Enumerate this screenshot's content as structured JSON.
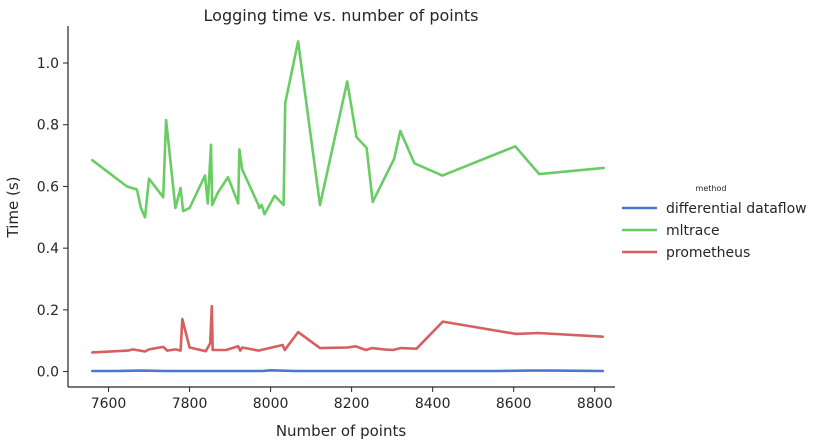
{
  "chart_data": {
    "type": "line",
    "title": "Logging time vs. number of points",
    "xlabel": "Number of points",
    "ylabel": "Time (s)",
    "xlim": [
      7500,
      8850
    ],
    "ylim": [
      -0.05,
      1.12
    ],
    "xticks": [
      7600,
      7800,
      8000,
      8200,
      8400,
      8600,
      8800
    ],
    "yticks": [
      0.0,
      0.2,
      0.4,
      0.6,
      0.8,
      1.0
    ],
    "xtick_labels": [
      "7600",
      "7800",
      "8000",
      "8200",
      "8400",
      "8600",
      "8800"
    ],
    "ytick_labels": [
      "0.0",
      "0.2",
      "0.4",
      "0.6",
      "0.8",
      "1.0"
    ],
    "grid": false,
    "legend": {
      "title": "method",
      "placement": "right"
    },
    "series": [
      {
        "name": "differential dataflow",
        "color": "#4878d0",
        "x": [
          7560,
          7620,
          7680,
          7740,
          7800,
          7860,
          7920,
          7980,
          8000,
          8060,
          8120,
          8200,
          8260,
          8320,
          8400,
          8480,
          8560,
          8640,
          8700,
          8820
        ],
        "y": [
          0.002,
          0.002,
          0.003,
          0.002,
          0.002,
          0.002,
          0.002,
          0.002,
          0.004,
          0.002,
          0.002,
          0.002,
          0.002,
          0.002,
          0.002,
          0.002,
          0.002,
          0.003,
          0.003,
          0.002
        ]
      },
      {
        "name": "mltrace",
        "color": "#6acc64",
        "x": [
          7560,
          7645,
          7670,
          7680,
          7690,
          7700,
          7735,
          7742,
          7765,
          7778,
          7784,
          7800,
          7838,
          7845,
          7853,
          7856,
          7870,
          7895,
          7920,
          7923,
          7930,
          7970,
          7972,
          7978,
          7985,
          8010,
          8032,
          8036,
          8068,
          8122,
          8189,
          8212,
          8237,
          8252,
          8305,
          8320,
          8355,
          8424,
          8604,
          8663,
          8822
        ],
        "y": [
          0.685,
          0.6,
          0.59,
          0.53,
          0.5,
          0.625,
          0.565,
          0.815,
          0.53,
          0.595,
          0.52,
          0.53,
          0.635,
          0.545,
          0.735,
          0.54,
          0.58,
          0.63,
          0.545,
          0.72,
          0.655,
          0.54,
          0.53,
          0.54,
          0.51,
          0.57,
          0.54,
          0.87,
          1.07,
          0.54,
          0.94,
          0.76,
          0.725,
          0.55,
          0.69,
          0.78,
          0.675,
          0.635,
          0.73,
          0.64,
          0.66
        ]
      },
      {
        "name": "prometheus",
        "color": "#d65f5f",
        "x": [
          7560,
          7648,
          7660,
          7690,
          7700,
          7735,
          7745,
          7765,
          7778,
          7782,
          7800,
          7840,
          7851,
          7855,
          7857,
          7866,
          7890,
          7920,
          7925,
          7930,
          7970,
          8030,
          8035,
          8068,
          8122,
          8190,
          8210,
          8235,
          8250,
          8280,
          8302,
          8320,
          8360,
          8425,
          8605,
          8660,
          8820
        ],
        "y": [
          0.062,
          0.068,
          0.072,
          0.065,
          0.072,
          0.08,
          0.068,
          0.072,
          0.068,
          0.17,
          0.078,
          0.066,
          0.092,
          0.212,
          0.07,
          0.07,
          0.07,
          0.082,
          0.068,
          0.078,
          0.068,
          0.086,
          0.07,
          0.128,
          0.076,
          0.078,
          0.082,
          0.07,
          0.076,
          0.072,
          0.07,
          0.076,
          0.074,
          0.162,
          0.122,
          0.125,
          0.113
        ]
      }
    ]
  }
}
